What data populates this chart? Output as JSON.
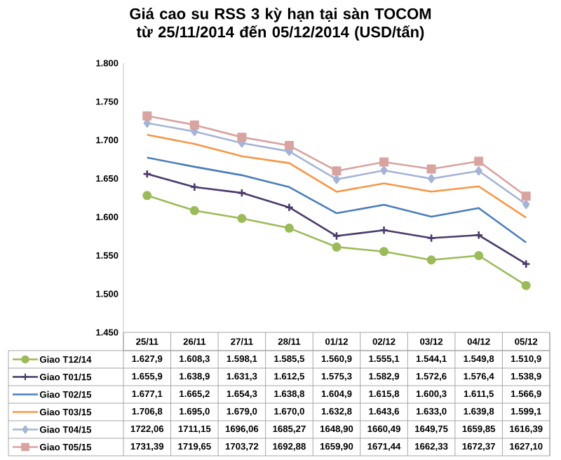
{
  "chart_data": {
    "type": "line",
    "title": "Giá cao su RSS 3 kỳ hạn tại sàn TOCOM từ 25/11/2014 đến 05/12/2014 (USD/tấn)",
    "categories": [
      "25/11",
      "26/11",
      "27/11",
      "28/11",
      "01/12",
      "02/12",
      "03/12",
      "04/12",
      "05/12"
    ],
    "ylim": [
      1450,
      1800
    ],
    "yticks": [
      {
        "value": 1450,
        "label": "1.450"
      },
      {
        "value": 1500,
        "label": "1.500"
      },
      {
        "value": 1550,
        "label": "1.550"
      },
      {
        "value": 1600,
        "label": "1.600"
      },
      {
        "value": 1650,
        "label": "1.650"
      },
      {
        "value": 1700,
        "label": "1.700"
      },
      {
        "value": 1750,
        "label": "1.750"
      },
      {
        "value": 1800,
        "label": "1.800"
      }
    ],
    "grid": false,
    "legend": "bottom",
    "series": [
      {
        "name": "Giao T12/14",
        "color": "#9bbb59",
        "marker": "circle",
        "values": [
          1627.9,
          1608.3,
          1598.1,
          1585.5,
          1560.9,
          1555.1,
          1544.1,
          1549.8,
          1510.9
        ],
        "value_labels": [
          "1.627,9",
          "1.608,3",
          "1.598,1",
          "1.585,5",
          "1.560,9",
          "1.555,1",
          "1.544,1",
          "1.549,8",
          "1.510,9"
        ]
      },
      {
        "name": "Giao T01/15",
        "color": "#4b3a6b",
        "marker": "cross",
        "values": [
          1655.9,
          1638.9,
          1631.3,
          1612.5,
          1575.3,
          1582.9,
          1572.6,
          1576.4,
          1538.9
        ],
        "value_labels": [
          "1.655,9",
          "1.638,9",
          "1.631,3",
          "1.612,5",
          "1.575,3",
          "1.582,9",
          "1.572,6",
          "1.576,4",
          "1.538,9"
        ]
      },
      {
        "name": "Giao T02/15",
        "color": "#4a7ebb",
        "marker": "none",
        "values": [
          1677.1,
          1665.2,
          1654.3,
          1638.8,
          1604.9,
          1615.8,
          1600.3,
          1611.5,
          1566.9
        ],
        "value_labels": [
          "1.677,1",
          "1.665,2",
          "1.654,3",
          "1.638,8",
          "1.604,9",
          "1.615,8",
          "1.600,3",
          "1.611,5",
          "1.566,9"
        ]
      },
      {
        "name": "Giao T03/15",
        "color": "#f79646",
        "marker": "none",
        "values": [
          1706.8,
          1695.0,
          1679.0,
          1670.0,
          1632.8,
          1643.6,
          1633.0,
          1639.8,
          1599.1
        ],
        "value_labels": [
          "1.706,8",
          "1.695,0",
          "1.679,0",
          "1.670,0",
          "1.632,8",
          "1.643,6",
          "1.633,0",
          "1.639,8",
          "1.599,1"
        ]
      },
      {
        "name": "Giao T04/15",
        "color": "#a5b4d6",
        "marker": "diamond",
        "values": [
          1722.06,
          1711.15,
          1696.06,
          1685.27,
          1648.9,
          1660.49,
          1649.75,
          1659.85,
          1616.39
        ],
        "value_labels": [
          "1722,06",
          "1711,15",
          "1696,06",
          "1685,27",
          "1648,90",
          "1660,49",
          "1649,75",
          "1659,85",
          "1616,39"
        ]
      },
      {
        "name": "Giao T05/15",
        "color": "#d9a3a0",
        "marker": "square",
        "values": [
          1731.39,
          1719.65,
          1703.72,
          1692.88,
          1659.9,
          1671.44,
          1662.33,
          1672.37,
          1627.1
        ],
        "value_labels": [
          "1731,39",
          "1719,65",
          "1703,72",
          "1692,88",
          "1659,90",
          "1671,44",
          "1662,33",
          "1672,37",
          "1627,10"
        ]
      }
    ]
  }
}
